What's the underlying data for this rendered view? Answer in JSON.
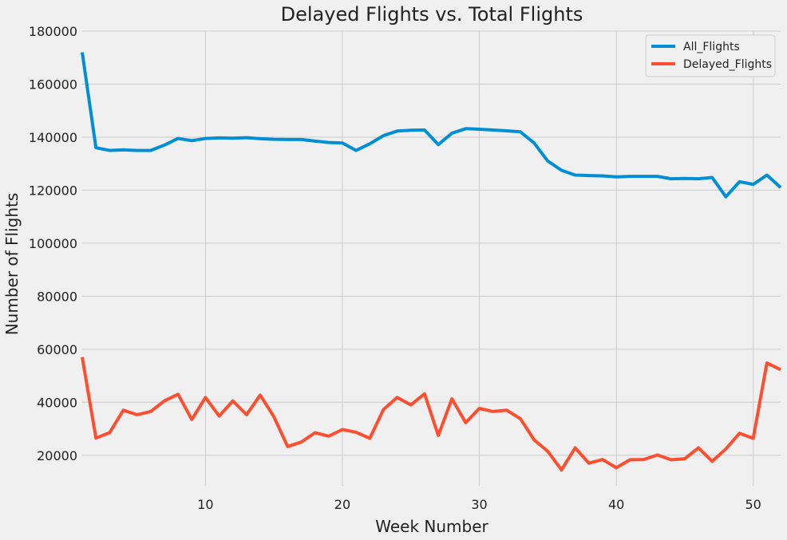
{
  "chart_data": {
    "type": "line",
    "title": "Delayed Flights vs. Total Flights",
    "xlabel": "Week Number",
    "ylabel": "Number of Flights",
    "xlim": [
      1,
      52
    ],
    "ylim": [
      8500,
      180000
    ],
    "xticks": [
      10,
      20,
      30,
      40,
      50
    ],
    "yticks": [
      20000,
      40000,
      60000,
      80000,
      100000,
      120000,
      140000,
      160000,
      180000
    ],
    "grid": true,
    "legend_position": "top-right",
    "x": [
      1,
      2,
      3,
      4,
      5,
      6,
      7,
      8,
      9,
      10,
      11,
      12,
      13,
      14,
      15,
      16,
      17,
      18,
      19,
      20,
      21,
      22,
      23,
      24,
      25,
      26,
      27,
      28,
      29,
      30,
      31,
      32,
      33,
      34,
      35,
      36,
      37,
      38,
      39,
      40,
      41,
      42,
      43,
      44,
      45,
      46,
      47,
      48,
      49,
      50,
      51,
      52
    ],
    "series": [
      {
        "name": "All_Flights",
        "color": "#008fd5",
        "values": [
          172000,
          136000,
          135000,
          135200,
          135000,
          135000,
          137000,
          139500,
          138700,
          139500,
          139700,
          139600,
          139800,
          139400,
          139200,
          139100,
          139100,
          138500,
          138000,
          137800,
          135000,
          137500,
          140600,
          142300,
          142600,
          142700,
          137200,
          141500,
          143200,
          143000,
          142700,
          142400,
          142000,
          137800,
          131000,
          127500,
          125700,
          125500,
          125400,
          125000,
          125200,
          125200,
          125200,
          124300,
          124400,
          124300,
          124800,
          117500,
          123200,
          122200,
          125700,
          121000
        ]
      },
      {
        "name": "Delayed_Flights",
        "color": "#fc4f30",
        "values": [
          57000,
          26500,
          28500,
          37000,
          35300,
          36500,
          40500,
          43000,
          33500,
          41800,
          34800,
          40500,
          35300,
          42700,
          34500,
          23300,
          25000,
          28500,
          27200,
          29700,
          28700,
          26400,
          37300,
          41800,
          39000,
          43200,
          27500,
          41300,
          32300,
          37700,
          36500,
          37000,
          33800,
          25800,
          21500,
          14500,
          22800,
          17000,
          18400,
          15300,
          18300,
          18400,
          20100,
          18300,
          18700,
          22800,
          17700,
          22400,
          28300,
          26400,
          54800,
          52300
        ]
      }
    ]
  }
}
